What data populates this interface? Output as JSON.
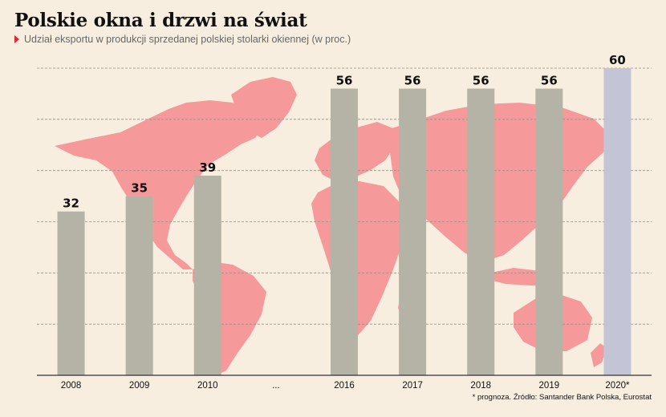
{
  "header": {
    "title": "Polskie okna i drzwi na świat",
    "subtitle": "Udział eksportu w produkcji sprzedanej polskiej stolarki okiennej (w proc.)"
  },
  "footnote": "* prognoza. Źródło: Santander Bank Polska, Eurostat",
  "colors": {
    "bar": "#b4b3a5",
    "bar_forecast": "#c3c4d6",
    "map": "#f6999b",
    "background": "#f8eee0",
    "accent": "#e8262b"
  },
  "chart_data": {
    "type": "bar",
    "categories": [
      "2008",
      "2009",
      "2010",
      "...",
      "2016",
      "2017",
      "2018",
      "2019",
      "2020*"
    ],
    "values": [
      32,
      35,
      39,
      null,
      56,
      56,
      56,
      56,
      60
    ],
    "data_labels": [
      "32",
      "35",
      "39",
      "",
      "56",
      "56",
      "56",
      "56",
      "60"
    ],
    "forecast": [
      false,
      false,
      false,
      false,
      false,
      false,
      false,
      false,
      true
    ],
    "ylim": [
      0,
      60
    ],
    "grid": true,
    "grid_step": 10,
    "legend": "none"
  }
}
